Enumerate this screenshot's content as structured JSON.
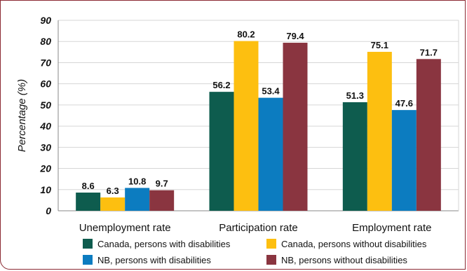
{
  "chart_data": {
    "type": "bar",
    "title": "",
    "xlabel": "",
    "ylabel": "Percentage (%)",
    "ylim": [
      0,
      90
    ],
    "yticks": [
      "0",
      "10",
      "20",
      "30",
      "40",
      "50",
      "60",
      "70",
      "80",
      "90"
    ],
    "grid": true,
    "legend_position": "bottom",
    "categories": [
      "Unemployment rate",
      "Participation rate",
      "Employment rate"
    ],
    "series": [
      {
        "name": "Canada, persons with disabilities",
        "color": "#0e5c4e",
        "values": [
          8.6,
          56.2,
          51.3
        ],
        "labels": [
          "8.6",
          "56.2",
          "51.3"
        ]
      },
      {
        "name": "Canada, persons without disabilities",
        "color": "#fdbf10",
        "values": [
          6.3,
          80.2,
          75.1
        ],
        "labels": [
          "6.3",
          "80.2",
          "75.1"
        ]
      },
      {
        "name": "NB, persons with disabilities",
        "color": "#0c7cc0",
        "values": [
          10.8,
          53.4,
          47.6
        ],
        "labels": [
          "10.8",
          "53.4",
          "47.6"
        ]
      },
      {
        "name": "NB, persons without disabilities",
        "color": "#8a3540",
        "values": [
          9.7,
          79.4,
          71.7
        ],
        "labels": [
          "9.7",
          "79.4",
          "71.7"
        ]
      }
    ]
  }
}
